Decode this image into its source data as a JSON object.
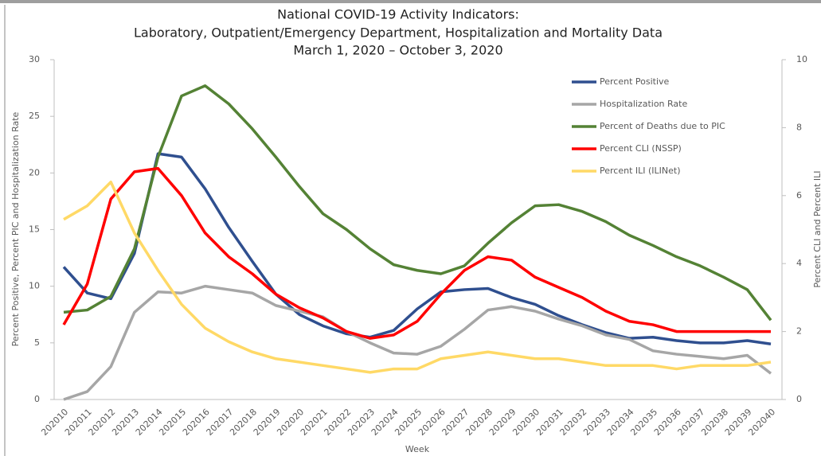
{
  "chart_data": {
    "type": "line",
    "title_lines": [
      "National COVID-19 Activity Indicators:",
      "Laboratory, Outpatient/Emergency Department, Hospitalization and Mortality Data",
      "March 1, 2020 – October 3, 2020"
    ],
    "x_label": "Week",
    "y_label": "Percent Positive, Percent PIC and Hospitalization Rate",
    "y2_label": "Percent CLI and Percent ILI",
    "categories": [
      "202010",
      "202011",
      "202012",
      "202013",
      "202014",
      "202015",
      "202016",
      "202017",
      "202018",
      "202019",
      "202020",
      "202021",
      "202022",
      "202023",
      "202024",
      "202025",
      "202026",
      "202027",
      "202028",
      "202029",
      "202030",
      "202031",
      "202032",
      "202033",
      "202034",
      "202035",
      "202036",
      "202037",
      "202038",
      "202039",
      "202040"
    ],
    "ylim": [
      0,
      30
    ],
    "yticks": [
      0,
      5,
      10,
      15,
      20,
      25,
      30
    ],
    "y2lim": [
      0,
      10
    ],
    "y2ticks": [
      0,
      2,
      4,
      6,
      8,
      10
    ],
    "legend": "upper right",
    "series": [
      {
        "name": "Percent Positive",
        "color": "#2f4f8f",
        "values": [
          11.7,
          9.4,
          8.9,
          12.9,
          21.7,
          21.4,
          18.6,
          15.2,
          12.2,
          9.3,
          7.5,
          6.5,
          5.8,
          5.5,
          6.1,
          8.0,
          9.5,
          9.7,
          9.8,
          9.0,
          8.4,
          7.4,
          6.6,
          5.9,
          5.4,
          5.5,
          5.2,
          5.0,
          5.0,
          5.2,
          4.9
        ]
      },
      {
        "name": "Hospitalization Rate",
        "color": "#a6a6a6",
        "values": [
          0,
          0.7,
          2.9,
          7.7,
          9.5,
          9.4,
          10.0,
          9.7,
          9.4,
          8.3,
          7.8,
          7.3,
          6.0,
          5.0,
          4.1,
          4.0,
          4.7,
          6.2,
          7.9,
          8.2,
          7.8,
          7.1,
          6.5,
          5.7,
          5.3,
          4.3,
          4.0,
          3.8,
          3.6,
          3.9,
          2.3
        ]
      },
      {
        "name": "Percent of Deaths due to PIC",
        "color": "#548235",
        "values": [
          7.7,
          7.9,
          9.1,
          13.3,
          21.4,
          26.8,
          27.7,
          26.1,
          23.9,
          21.4,
          18.8,
          16.4,
          15.0,
          13.3,
          11.9,
          11.4,
          11.1,
          11.8,
          13.8,
          15.6,
          17.1,
          17.2,
          16.6,
          15.7,
          14.5,
          13.6,
          12.6,
          11.8,
          10.8,
          9.7,
          7.0
        ]
      },
      {
        "name": "Percent CLI (NSSP)",
        "color": "#ff0000",
        "axis": "y2",
        "values": [
          2.2,
          3.4,
          5.9,
          6.7,
          6.8,
          6.0,
          4.9,
          4.2,
          3.7,
          3.1,
          2.7,
          2.4,
          2.0,
          1.8,
          1.9,
          2.3,
          3.1,
          3.8,
          4.2,
          4.1,
          3.6,
          3.3,
          3.0,
          2.6,
          2.3,
          2.2,
          2.0,
          2.0,
          2.0,
          2.0,
          2.0
        ]
      },
      {
        "name": "Percent ILI (ILINet)",
        "color": "#ffd966",
        "axis": "y2",
        "values": [
          5.3,
          5.7,
          6.4,
          4.9,
          3.8,
          2.8,
          2.1,
          1.7,
          1.4,
          1.2,
          1.1,
          1.0,
          0.9,
          0.8,
          0.9,
          0.9,
          1.2,
          1.3,
          1.4,
          1.3,
          1.2,
          1.2,
          1.1,
          1.0,
          1.0,
          1.0,
          0.9,
          1.0,
          1.0,
          1.0,
          1.1
        ]
      }
    ]
  }
}
